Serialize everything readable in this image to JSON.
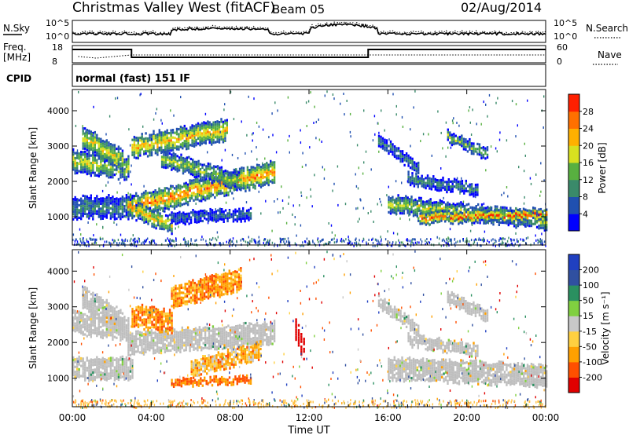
{
  "header": {
    "title": "Christmas Valley West (fitACF)",
    "beam": "Beam 05",
    "date": "02/Aug/2014"
  },
  "strip1": {
    "left_label": "N.Sky",
    "right_label": "N.Search",
    "left_ticks": [
      "10^5",
      "10^0"
    ],
    "right_ticks": [
      "10^5",
      "10^0"
    ]
  },
  "strip2": {
    "left_label_1": "Freq.",
    "left_label_2": "[MHz]",
    "right_label": "Nave",
    "left_ticks": [
      "18",
      "8"
    ],
    "right_ticks": [
      "60",
      "0"
    ]
  },
  "cpid": {
    "label": "CPID",
    "value": "normal (fast) 151 IF"
  },
  "colors": {
    "power_scale": [
      "#0000ff",
      "#2050b0",
      "#3a8a6a",
      "#58b040",
      "#d8e020",
      "#ffb000",
      "#ff7000",
      "#ff2000"
    ],
    "velocity_scale": [
      "#e00000",
      "#ff5000",
      "#ffa000",
      "#ffd040",
      "#c8c8c8",
      "#80d040",
      "#2a9060",
      "#3050a0",
      "#2040c0"
    ],
    "ground_scatter": "#bebebe"
  },
  "chart_data": [
    {
      "type": "heatmap",
      "panel": "power",
      "ylabel": "Slant Range [km]",
      "xlabel": "",
      "x_ticks": [
        "00:00",
        "04:00",
        "08:00",
        "12:00",
        "16:00",
        "20:00",
        "00:00"
      ],
      "y_ticks": [
        "1000",
        "2000",
        "3000",
        "4000"
      ],
      "xlim": [
        0,
        24
      ],
      "ylim": [
        200,
        4600
      ],
      "colorbar": {
        "label": "Power [dB]",
        "ticks": [
          "28",
          "24",
          "20",
          "16",
          "12",
          "8",
          "4"
        ],
        "range": [
          0,
          32
        ]
      },
      "echo_bands": [
        {
          "t": [
            0.0,
            2.8
          ],
          "r0": 2600,
          "r1": 2400,
          "w": 300,
          "p": 18
        },
        {
          "t": [
            0.5,
            2.5
          ],
          "r0": 3300,
          "r1": 2600,
          "w": 250,
          "p": 20
        },
        {
          "t": [
            0.0,
            3.0
          ],
          "r0": 1300,
          "r1": 1300,
          "w": 250,
          "p": 10
        },
        {
          "t": [
            2.8,
            10.2
          ],
          "r0": 1300,
          "r1": 2300,
          "w": 250,
          "p": 26
        },
        {
          "t": [
            3.2,
            5.0
          ],
          "r0": 1200,
          "r1": 800,
          "w": 200,
          "p": 22
        },
        {
          "t": [
            3.0,
            7.8
          ],
          "r0": 3000,
          "r1": 3500,
          "w": 250,
          "p": 22
        },
        {
          "t": [
            4.5,
            8.5
          ],
          "r0": 2700,
          "r1": 2000,
          "w": 200,
          "p": 16
        },
        {
          "t": [
            5.0,
            9.0
          ],
          "r0": 1000,
          "r1": 1100,
          "w": 120,
          "p": 8
        },
        {
          "t": [
            16.0,
            24.0
          ],
          "r0": 1400,
          "r1": 900,
          "w": 200,
          "p": 18
        },
        {
          "t": [
            17.5,
            24.0
          ],
          "r0": 1000,
          "r1": 1100,
          "w": 150,
          "p": 28
        },
        {
          "t": [
            17.0,
            20.5
          ],
          "r0": 2100,
          "r1": 1800,
          "w": 150,
          "p": 10
        },
        {
          "t": [
            19.0,
            21.0
          ],
          "r0": 3300,
          "r1": 2800,
          "w": 150,
          "p": 14
        },
        {
          "t": [
            15.5,
            17.5
          ],
          "r0": 3200,
          "r1": 2400,
          "w": 150,
          "p": 10
        }
      ]
    },
    {
      "type": "heatmap",
      "panel": "velocity",
      "ylabel": "Slant Range [km]",
      "xlabel": "Time UT",
      "x_ticks": [
        "00:00",
        "04:00",
        "08:00",
        "12:00",
        "16:00",
        "20:00",
        "00:00"
      ],
      "y_ticks": [
        "1000",
        "2000",
        "3000",
        "4000"
      ],
      "xlim": [
        0,
        24
      ],
      "ylim": [
        200,
        4600
      ],
      "colorbar": {
        "label": "Velocity [m s⁻¹]",
        "ticks": [
          "200",
          "100",
          "50",
          "15",
          "-15",
          "-50",
          "-100",
          "-200"
        ],
        "range": [
          -250,
          250
        ]
      },
      "echo_bands": [
        {
          "t": [
            0.0,
            2.8
          ],
          "r0": 2600,
          "r1": 2400,
          "w": 300,
          "v": 0,
          "g": true
        },
        {
          "t": [
            0.5,
            2.5
          ],
          "r0": 3300,
          "r1": 2600,
          "w": 250,
          "v": 0,
          "g": true
        },
        {
          "t": [
            0.0,
            3.0
          ],
          "r0": 1300,
          "r1": 1300,
          "w": 250,
          "v": 0,
          "g": true
        },
        {
          "t": [
            2.8,
            10.2
          ],
          "r0": 2000,
          "r1": 2300,
          "w": 300,
          "v": 0,
          "g": true
        },
        {
          "t": [
            3.0,
            5.0
          ],
          "r0": 2800,
          "r1": 2600,
          "w": 250,
          "v": -60,
          "g": false
        },
        {
          "t": [
            5.0,
            8.5
          ],
          "r0": 3300,
          "r1": 3800,
          "w": 250,
          "v": -60,
          "g": false
        },
        {
          "t": [
            6.0,
            9.5
          ],
          "r0": 1300,
          "r1": 1800,
          "w": 200,
          "v": -40,
          "g": false
        },
        {
          "t": [
            5.0,
            9.0
          ],
          "r0": 900,
          "r1": 1000,
          "w": 100,
          "v": -80,
          "g": false
        },
        {
          "t": [
            11.3,
            11.7
          ],
          "r0": 2400,
          "r1": 1800,
          "w": 300,
          "v": -200,
          "g": false
        },
        {
          "t": [
            16.0,
            24.0
          ],
          "r0": 1300,
          "r1": 1100,
          "w": 300,
          "v": 0,
          "g": true
        },
        {
          "t": [
            17.0,
            20.5
          ],
          "r0": 2100,
          "r1": 1800,
          "w": 150,
          "v": 0,
          "g": true
        },
        {
          "t": [
            19.0,
            21.0
          ],
          "r0": 3300,
          "r1": 2800,
          "w": 150,
          "v": 0,
          "g": true
        },
        {
          "t": [
            15.5,
            17.5
          ],
          "r0": 3200,
          "r1": 2400,
          "w": 150,
          "v": 0,
          "g": true
        }
      ]
    }
  ]
}
